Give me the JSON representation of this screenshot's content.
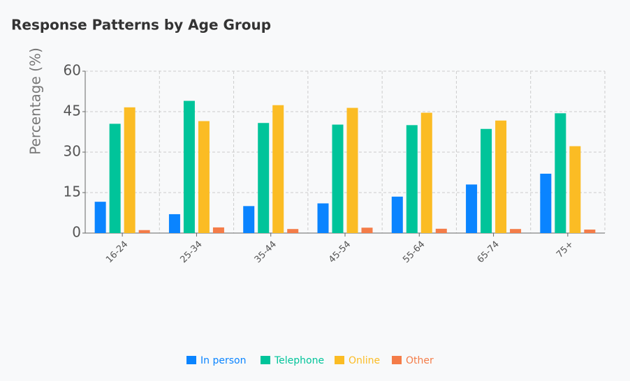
{
  "chart_data": {
    "type": "bar",
    "title": "Response Patterns by Age Group",
    "y_label": "Percentage (%)",
    "categories": [
      "16-24",
      "25-34",
      "35-44",
      "45-54",
      "55-64",
      "65-74",
      "75+"
    ],
    "series": [
      {
        "name": "In person",
        "color": "#0a84ff",
        "values": [
          11.6,
          7,
          10,
          11,
          13.5,
          18,
          22
        ]
      },
      {
        "name": "Telephone",
        "color": "#00c49a",
        "values": [
          40.5,
          49,
          40.8,
          40.2,
          40,
          38.6,
          44.4
        ]
      },
      {
        "name": "Online",
        "color": "#fbbc24",
        "values": [
          46.6,
          41.5,
          47.4,
          46.4,
          44.6,
          41.7,
          32.2
        ]
      },
      {
        "name": "Other",
        "color": "#f47c48",
        "values": [
          1.1,
          2.1,
          1.5,
          2,
          1.6,
          1.5,
          1.3
        ]
      }
    ],
    "ylim": [
      0,
      60
    ],
    "yticks": [
      0,
      15,
      30,
      45,
      60
    ],
    "grid": true
  }
}
